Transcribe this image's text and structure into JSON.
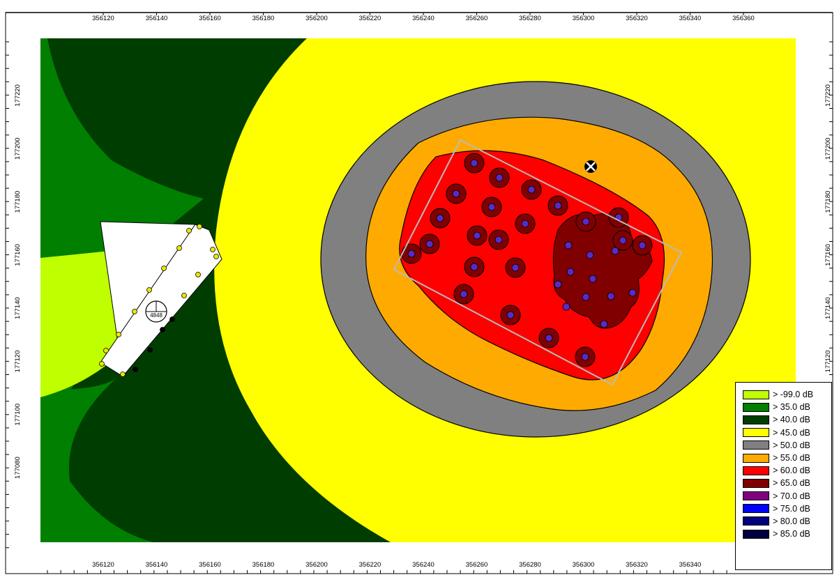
{
  "top_x_ticks": [
    "356120",
    "356140",
    "356160",
    "356180",
    "356200",
    "356220",
    "356240",
    "356260",
    "356280",
    "356300",
    "356320",
    "356340",
    "356360"
  ],
  "bottom_x_ticks": [
    "356120",
    "356140",
    "356160",
    "356180",
    "356200",
    "356220",
    "356240",
    "356260",
    "356280",
    "356300",
    "356320",
    "356340"
  ],
  "left_y_ticks": [
    "177220",
    "177200",
    "177180",
    "177160",
    "177140",
    "177120",
    "177100",
    "177080"
  ],
  "right_y_ticks": [
    "177220",
    "177200",
    "177180",
    "177160",
    "177140",
    "177120"
  ],
  "receptor_label": "4848",
  "legend": [
    {
      "label": "> -99.0 dB",
      "color": "#c0ff00"
    },
    {
      "label": ">  35.0 dB",
      "color": "#007f00"
    },
    {
      "label": ">  40.0 dB",
      "color": "#003d00"
    },
    {
      "label": ">  45.0 dB",
      "color": "#ffff00"
    },
    {
      "label": ">  50.0 dB",
      "color": "#808080"
    },
    {
      "label": ">  55.0 dB",
      "color": "#ffaa00"
    },
    {
      "label": ">  60.0 dB",
      "color": "#ff0000"
    },
    {
      "label": ">  65.0 dB",
      "color": "#800000"
    },
    {
      "label": ">  70.0 dB",
      "color": "#800080"
    },
    {
      "label": ">  75.0 dB",
      "color": "#0000ff"
    },
    {
      "label": ">  80.0 dB",
      "color": "#000080"
    },
    {
      "label": ">  85.0 dB",
      "color": "#000040"
    }
  ]
}
